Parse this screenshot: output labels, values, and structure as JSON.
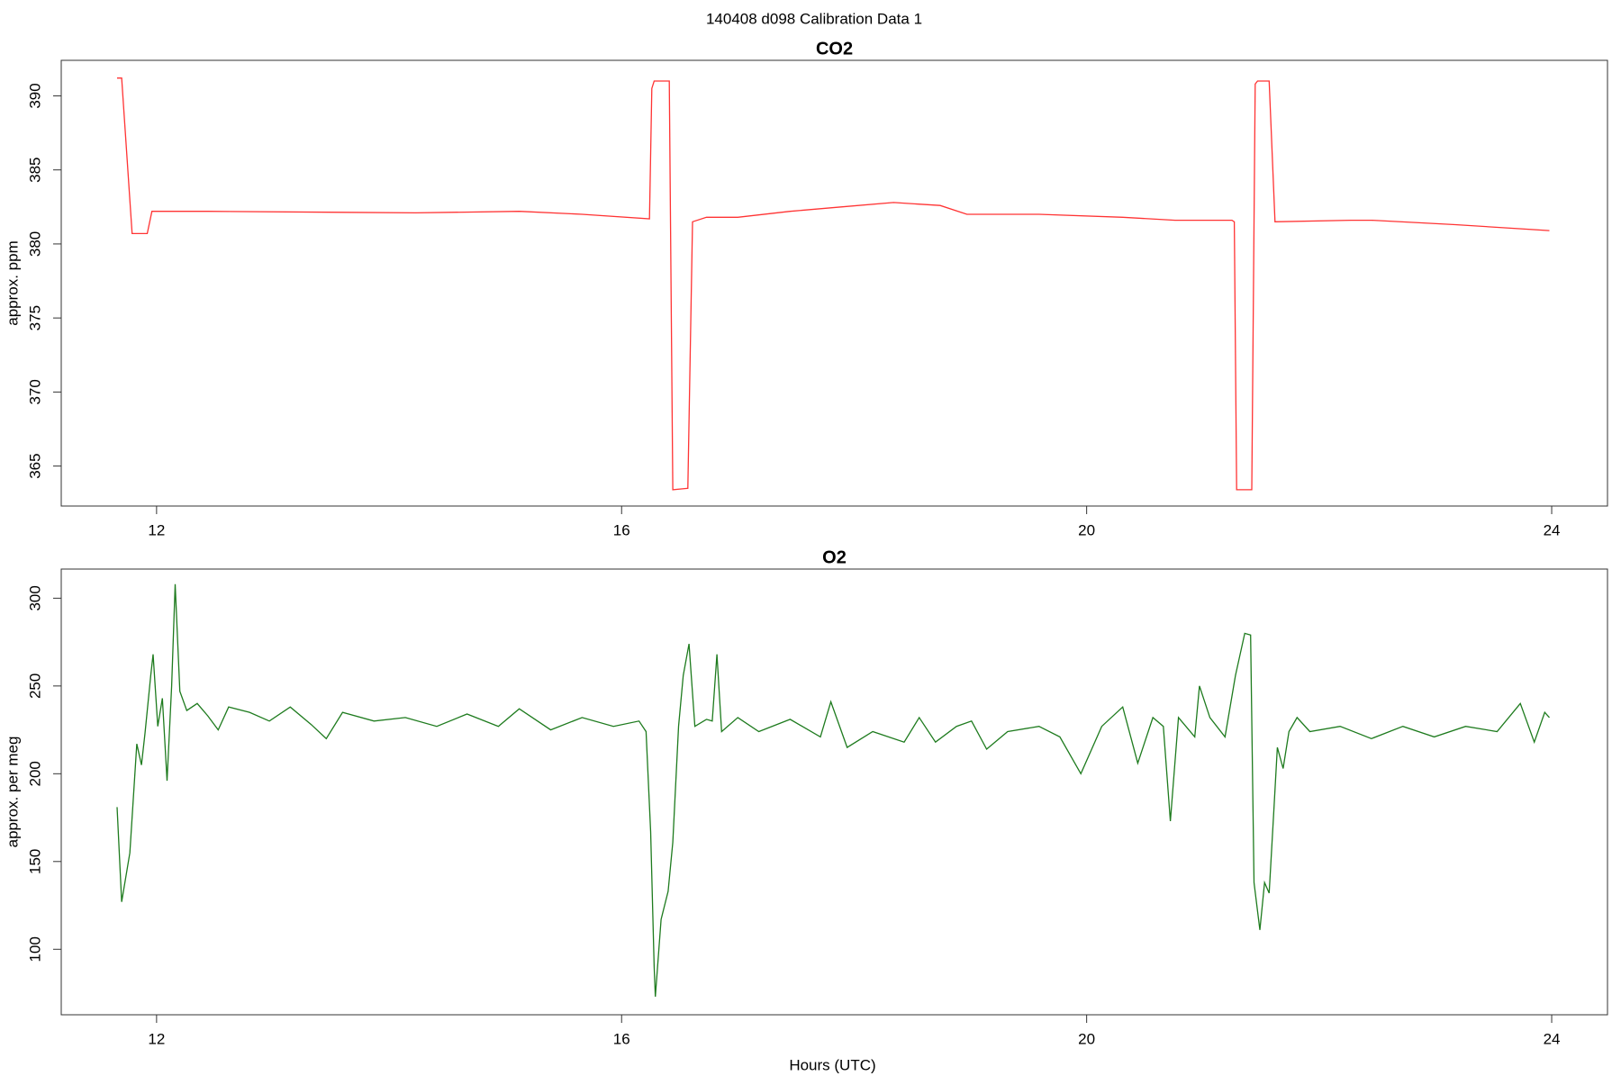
{
  "title": "140408   d098   Calibration Data 1",
  "chart_data": [
    {
      "type": "line",
      "title": "CO2",
      "ylabel": "approx. ppm",
      "xlim": [
        11.18,
        24.48
      ],
      "ylim": [
        362.3,
        392.4
      ],
      "xticks": [
        12,
        16,
        20,
        24
      ],
      "yticks": [
        365,
        370,
        375,
        380,
        385,
        390
      ],
      "x": [
        11.66,
        11.7,
        11.79,
        11.92,
        11.96,
        12.44,
        14.23,
        15.12,
        15.66,
        16.24,
        16.26,
        16.28,
        16.41,
        16.44,
        16.57,
        16.61,
        16.73,
        17.0,
        17.45,
        17.89,
        18.34,
        18.74,
        18.97,
        19.59,
        20.31,
        20.76,
        21.25,
        21.27,
        21.29,
        21.42,
        21.45,
        21.47,
        21.57,
        21.62,
        22.27,
        22.45,
        23.17,
        23.98
      ],
      "series": [
        {
          "color": "#ff3333",
          "values": [
            391.2,
            391.2,
            380.7,
            380.7,
            382.2,
            382.2,
            382.1,
            382.2,
            382.0,
            381.7,
            390.5,
            391.0,
            391.0,
            363.4,
            363.5,
            381.5,
            381.8,
            381.8,
            382.2,
            382.5,
            382.8,
            382.6,
            382.0,
            382.0,
            381.8,
            381.6,
            381.6,
            381.5,
            363.4,
            363.4,
            390.8,
            391.0,
            391.0,
            381.5,
            381.6,
            381.6,
            381.3,
            380.9
          ]
        }
      ]
    },
    {
      "type": "line",
      "title": "O2",
      "ylabel": "approx. per meg",
      "xlabel": "Hours (UTC)",
      "xlim": [
        11.18,
        24.48
      ],
      "ylim": [
        62.7,
        316.6
      ],
      "xticks": [
        12,
        16,
        20,
        24
      ],
      "yticks": [
        100,
        150,
        200,
        250,
        300
      ],
      "x": [
        11.66,
        11.7,
        11.77,
        11.83,
        11.87,
        11.9,
        11.95,
        11.97,
        12.01,
        12.05,
        12.09,
        12.13,
        12.16,
        12.2,
        12.26,
        12.35,
        12.44,
        12.53,
        12.62,
        12.8,
        12.97,
        13.15,
        13.33,
        13.46,
        13.6,
        13.87,
        14.14,
        14.41,
        14.67,
        14.94,
        15.12,
        15.39,
        15.66,
        15.93,
        16.15,
        16.21,
        16.25,
        16.28,
        16.29,
        16.34,
        16.4,
        16.44,
        16.49,
        16.53,
        16.58,
        16.63,
        16.73,
        16.78,
        16.82,
        16.86,
        17.0,
        17.18,
        17.45,
        17.71,
        17.8,
        17.94,
        18.16,
        18.43,
        18.56,
        18.7,
        18.88,
        19.01,
        19.14,
        19.32,
        19.59,
        19.77,
        19.95,
        20.13,
        20.31,
        20.44,
        20.57,
        20.66,
        20.72,
        20.79,
        20.93,
        20.97,
        21.06,
        21.19,
        21.28,
        21.36,
        21.41,
        21.44,
        21.49,
        21.53,
        21.57,
        21.61,
        21.64,
        21.69,
        21.74,
        21.81,
        21.92,
        22.18,
        22.45,
        22.72,
        22.99,
        23.26,
        23.53,
        23.73,
        23.85,
        23.94,
        23.98
      ],
      "series": [
        {
          "color": "#1e7b1e",
          "values": [
            181,
            127,
            155,
            217,
            205,
            223,
            256,
            268,
            227,
            243,
            196,
            250,
            308,
            247,
            236,
            240,
            233,
            225,
            238,
            235,
            230,
            238,
            228,
            220,
            235,
            230,
            232,
            227,
            234,
            227,
            237,
            225,
            232,
            227,
            230,
            224,
            167,
            90,
            73,
            117,
            133,
            161,
            227,
            256,
            274,
            227,
            231,
            230,
            268,
            224,
            232,
            224,
            231,
            221,
            241,
            215,
            224,
            218,
            232,
            218,
            227,
            230,
            214,
            224,
            227,
            221,
            200,
            227,
            238,
            206,
            232,
            227,
            173,
            232,
            221,
            250,
            232,
            221,
            256,
            280,
            279,
            138,
            111,
            138,
            132,
            179,
            215,
            203,
            224,
            232,
            224,
            227,
            220,
            227,
            221,
            227,
            224,
            240,
            218,
            235,
            232
          ]
        }
      ]
    }
  ]
}
